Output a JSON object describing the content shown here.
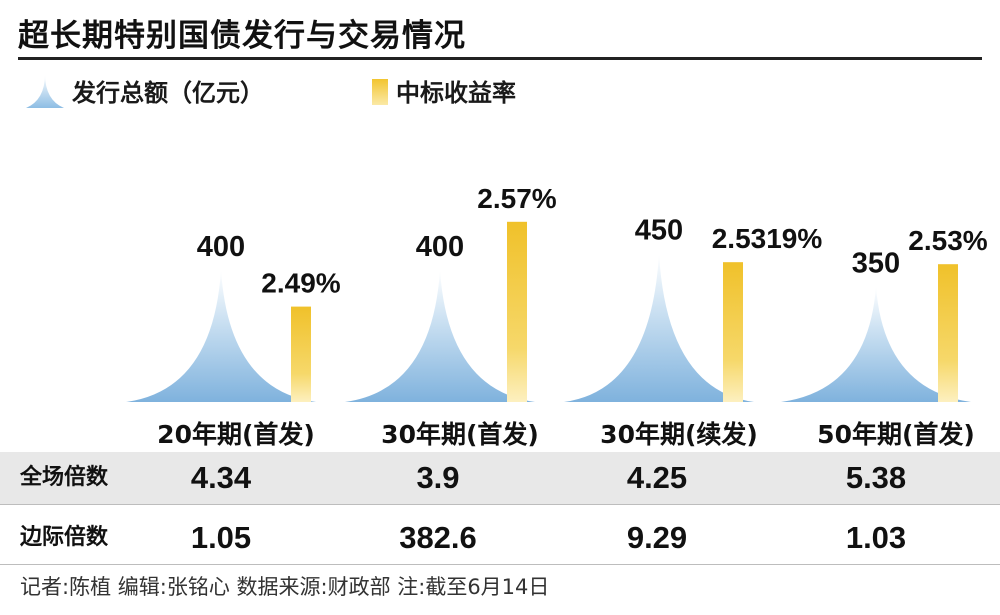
{
  "title": "超长期特别国债发行与交易情况",
  "legend": {
    "issuance_label": "发行总额（亿元）",
    "yield_label": "中标收益率",
    "issuance_color": "#8dbde4",
    "yield_color": "#f2c530"
  },
  "chart_data": {
    "type": "bar",
    "categories": [
      "20年期(首发)",
      "30年期(首发)",
      "30年期(续发)",
      "50年期(首发)"
    ],
    "series": [
      {
        "name": "发行总额（亿元）",
        "values": [
          400,
          400,
          450,
          350
        ],
        "labels": [
          "400",
          "400",
          "450",
          "350"
        ],
        "color": "#8dbde4",
        "shape": "spike"
      },
      {
        "name": "中标收益率",
        "values": [
          2.49,
          2.57,
          2.5319,
          2.53
        ],
        "labels": [
          "2.49%",
          "2.57%",
          "2.5319%",
          "2.53%"
        ],
        "color": "#f2c530"
      }
    ],
    "legend_position": "top-left",
    "grid": false
  },
  "table": {
    "rows": [
      {
        "label": "全场倍数",
        "values": [
          "4.34",
          "3.9",
          "4.25",
          "5.38"
        ]
      },
      {
        "label": "边际倍数",
        "values": [
          "1.05",
          "382.6",
          "9.29",
          "1.03"
        ]
      }
    ]
  },
  "footer": "记者:陈植   编辑:张铭心   数据来源:财政部   注:截至6月14日"
}
